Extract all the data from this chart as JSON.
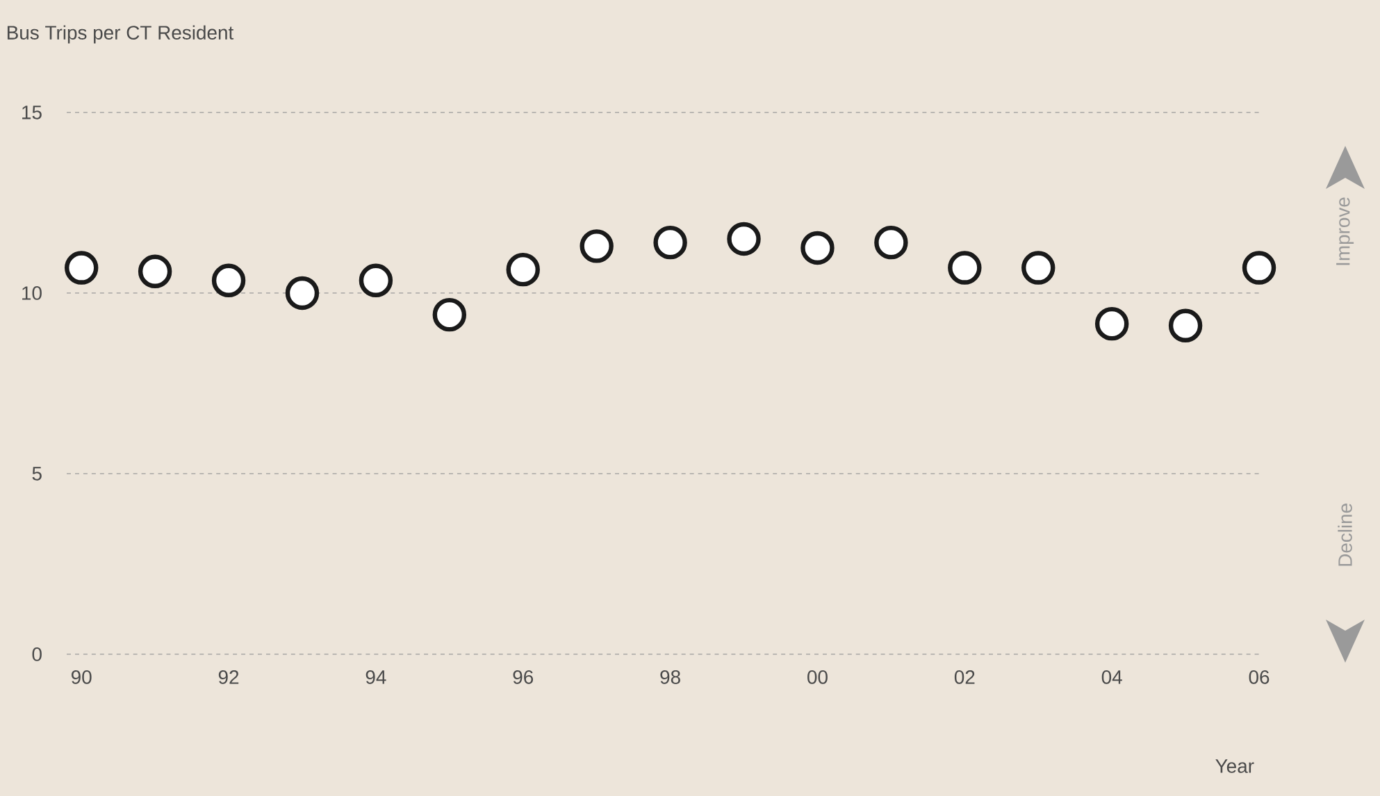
{
  "chart_data": {
    "type": "scatter",
    "ylabel": "Bus Trips per CT Resident",
    "xlabel": "Year",
    "x": [
      1990,
      1991,
      1992,
      1993,
      1994,
      1995,
      1996,
      1997,
      1998,
      1999,
      2000,
      2001,
      2002,
      2003,
      2004,
      2005,
      2006
    ],
    "series": [
      {
        "color": "#1a1a1a",
        "values": [
          10.7,
          10.6,
          10.35,
          10.0,
          10.35,
          9.4,
          10.65,
          11.3,
          11.4,
          11.5,
          11.25,
          11.4,
          10.7,
          10.7,
          9.15,
          9.1,
          10.7
        ]
      }
    ],
    "xlim": [
      1989.8,
      2006
    ],
    "xticks": [
      {
        "value": 1990,
        "label": "90"
      },
      {
        "value": 1992,
        "label": "92"
      },
      {
        "value": 1994,
        "label": "94"
      },
      {
        "value": 1996,
        "label": "96"
      },
      {
        "value": 1998,
        "label": "98"
      },
      {
        "value": 2000,
        "label": "00"
      },
      {
        "value": 2002,
        "label": "02"
      },
      {
        "value": 2004,
        "label": "04"
      },
      {
        "value": 2006,
        "label": "06"
      }
    ],
    "ylim": [
      0,
      15
    ],
    "yticks": [
      0,
      5,
      10,
      15
    ],
    "grid": "y",
    "marker": "circle",
    "annotations": [
      "Improve",
      "Decline"
    ]
  }
}
